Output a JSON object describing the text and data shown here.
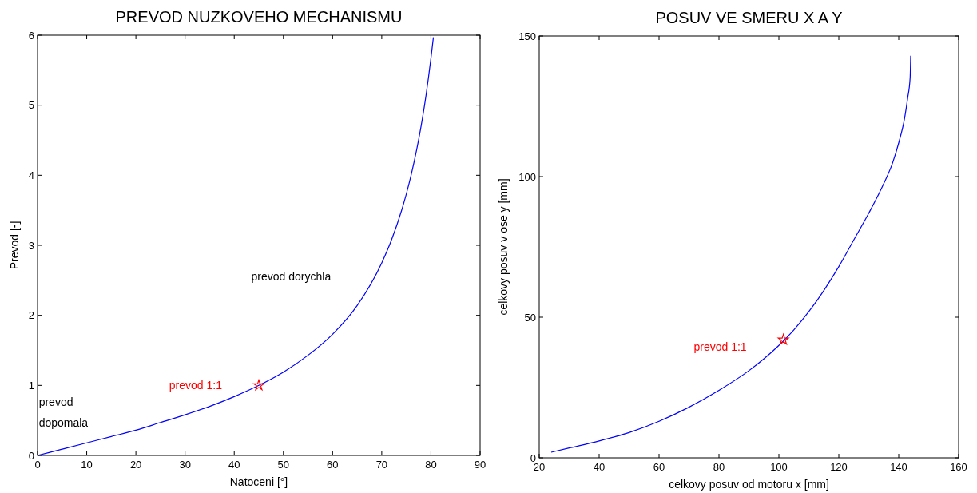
{
  "chart_data": [
    {
      "type": "line",
      "title": "PREVOD NUZKOVEHO MECHANISMU",
      "xlabel": "Natoceni [°]",
      "ylabel": "Prevod [-]",
      "xlim": [
        0,
        90
      ],
      "xticks": [
        0,
        10,
        20,
        30,
        40,
        50,
        60,
        70,
        80,
        90
      ],
      "ylim": [
        0,
        6
      ],
      "yticks": [
        0,
        1,
        2,
        3,
        4,
        5,
        6
      ],
      "grid": false,
      "series": [
        {
          "type": "line",
          "color": "#0000ff",
          "marker": "none",
          "x": [
            0,
            5,
            10,
            15,
            20,
            25,
            30,
            35,
            40,
            45,
            50,
            55,
            60,
            65,
            70,
            72,
            74,
            76,
            78,
            79,
            80,
            80.5
          ],
          "values": [
            0,
            0.09,
            0.18,
            0.27,
            0.36,
            0.47,
            0.58,
            0.7,
            0.84,
            1,
            1.19,
            1.43,
            1.73,
            2.14,
            2.75,
            3.08,
            3.49,
            4.01,
            4.7,
            5.14,
            5.67,
            5.97
          ]
        },
        {
          "type": "scatter",
          "color": "#ff0000",
          "marker": "star",
          "x": [
            45
          ],
          "values": [
            1
          ]
        }
      ],
      "annotations": [
        "prevod dorychla",
        "prevod 1:1",
        "prevod\ndopomala"
      ]
    },
    {
      "type": "line",
      "title": "POSUV VE SMERU X A Y",
      "xlabel": "celkovy posuv od motoru x [mm]",
      "ylabel": "celkovy posuv v ose y [mm]",
      "xlim": [
        20,
        160
      ],
      "xticks": [
        20,
        40,
        60,
        80,
        100,
        120,
        140,
        160
      ],
      "ylim": [
        0,
        150
      ],
      "yticks": [
        0,
        50,
        100,
        150
      ],
      "grid": false,
      "series": [
        {
          "type": "line",
          "color": "#0000ff",
          "marker": "none",
          "x": [
            24,
            30,
            40,
            50,
            60,
            70,
            80,
            90,
            100,
            105,
            110,
            115,
            120,
            125,
            130,
            135,
            138,
            140,
            142,
            143,
            143.8,
            144
          ],
          "values": [
            2,
            3.5,
            6,
            9,
            13,
            18,
            24,
            31,
            40,
            45.5,
            52,
            59.5,
            68,
            77.5,
            87,
            97.5,
            105,
            112,
            121,
            128,
            135,
            143
          ]
        },
        {
          "type": "scatter",
          "color": "#ff0000",
          "marker": "star",
          "x": [
            101.5
          ],
          "values": [
            42
          ]
        }
      ],
      "annotations": [
        "prevod 1:1"
      ]
    }
  ]
}
